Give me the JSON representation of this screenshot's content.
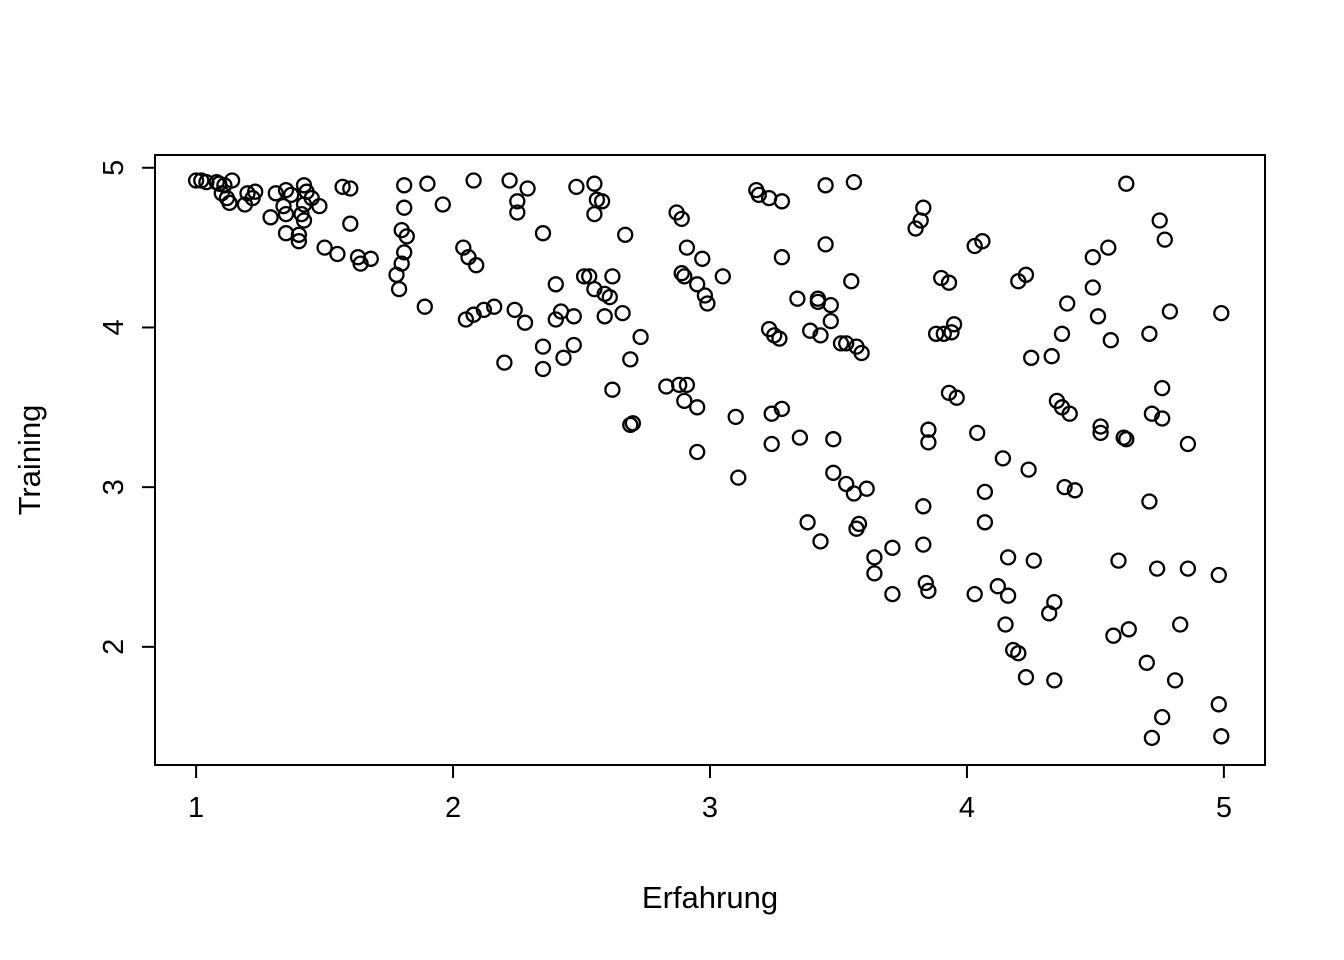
{
  "chart_data": {
    "type": "scatter",
    "title": "",
    "xlabel": "Erfahrung",
    "ylabel": "Training",
    "x_ticks": [
      1,
      2,
      3,
      4,
      5
    ],
    "y_ticks": [
      2,
      3,
      4,
      5
    ],
    "xlim": [
      0.84,
      5.16
    ],
    "ylim": [
      1.26,
      5.08
    ],
    "grid": false,
    "legend": null,
    "marker": "open-circle",
    "marker_color": "#000000",
    "background": "#ffffff",
    "points": [
      [
        1.0,
        4.92
      ],
      [
        1.02,
        4.92
      ],
      [
        1.04,
        4.91
      ],
      [
        1.08,
        4.91
      ],
      [
        1.09,
        4.9
      ],
      [
        1.11,
        4.89
      ],
      [
        1.14,
        4.92
      ],
      [
        1.1,
        4.84
      ],
      [
        1.12,
        4.81
      ],
      [
        1.13,
        4.78
      ],
      [
        1.19,
        4.77
      ],
      [
        1.2,
        4.84
      ],
      [
        1.22,
        4.81
      ],
      [
        1.23,
        4.85
      ],
      [
        1.29,
        4.69
      ],
      [
        1.31,
        4.84
      ],
      [
        1.34,
        4.76
      ],
      [
        1.35,
        4.86
      ],
      [
        1.35,
        4.71
      ],
      [
        1.35,
        4.59
      ],
      [
        1.37,
        4.83
      ],
      [
        1.4,
        4.58
      ],
      [
        1.4,
        4.54
      ],
      [
        1.41,
        4.71
      ],
      [
        1.42,
        4.89
      ],
      [
        1.42,
        4.77
      ],
      [
        1.42,
        4.67
      ],
      [
        1.43,
        4.85
      ],
      [
        1.45,
        4.81
      ],
      [
        1.48,
        4.76
      ],
      [
        1.5,
        4.5
      ],
      [
        1.55,
        4.46
      ],
      [
        1.57,
        4.88
      ],
      [
        1.6,
        4.87
      ],
      [
        1.6,
        4.65
      ],
      [
        1.63,
        4.44
      ],
      [
        1.64,
        4.4
      ],
      [
        1.68,
        4.43
      ],
      [
        1.78,
        4.33
      ],
      [
        1.79,
        4.24
      ],
      [
        1.8,
        4.61
      ],
      [
        1.8,
        4.4
      ],
      [
        1.81,
        4.89
      ],
      [
        1.81,
        4.75
      ],
      [
        1.81,
        4.47
      ],
      [
        1.82,
        4.57
      ],
      [
        1.89,
        4.13
      ],
      [
        1.9,
        4.9
      ],
      [
        1.96,
        4.77
      ],
      [
        2.04,
        4.5
      ],
      [
        2.05,
        4.05
      ],
      [
        2.06,
        4.44
      ],
      [
        2.08,
        4.92
      ],
      [
        2.08,
        4.08
      ],
      [
        2.09,
        4.39
      ],
      [
        2.12,
        4.11
      ],
      [
        2.16,
        4.13
      ],
      [
        2.2,
        3.78
      ],
      [
        2.22,
        4.92
      ],
      [
        2.24,
        4.11
      ],
      [
        2.25,
        4.79
      ],
      [
        2.25,
        4.72
      ],
      [
        2.28,
        4.03
      ],
      [
        2.29,
        4.87
      ],
      [
        2.35,
        4.59
      ],
      [
        2.35,
        3.88
      ],
      [
        2.35,
        3.74
      ],
      [
        2.4,
        4.27
      ],
      [
        2.4,
        4.05
      ],
      [
        2.42,
        4.1
      ],
      [
        2.43,
        3.81
      ],
      [
        2.47,
        4.07
      ],
      [
        2.47,
        3.89
      ],
      [
        2.48,
        4.88
      ],
      [
        2.51,
        4.32
      ],
      [
        2.53,
        4.32
      ],
      [
        2.55,
        4.9
      ],
      [
        2.55,
        4.71
      ],
      [
        2.55,
        4.24
      ],
      [
        2.56,
        4.8
      ],
      [
        2.58,
        4.79
      ],
      [
        2.59,
        4.21
      ],
      [
        2.59,
        4.07
      ],
      [
        2.61,
        4.19
      ],
      [
        2.62,
        4.32
      ],
      [
        2.62,
        3.61
      ],
      [
        2.66,
        4.09
      ],
      [
        2.67,
        4.58
      ],
      [
        2.69,
        3.8
      ],
      [
        2.69,
        3.39
      ],
      [
        2.7,
        3.4
      ],
      [
        2.73,
        3.94
      ],
      [
        2.83,
        3.63
      ],
      [
        2.87,
        4.72
      ],
      [
        2.88,
        3.64
      ],
      [
        2.89,
        4.68
      ],
      [
        2.89,
        4.34
      ],
      [
        2.9,
        4.32
      ],
      [
        2.9,
        3.54
      ],
      [
        2.91,
        4.5
      ],
      [
        2.91,
        3.64
      ],
      [
        2.95,
        4.27
      ],
      [
        2.95,
        3.5
      ],
      [
        2.95,
        3.22
      ],
      [
        2.97,
        4.43
      ],
      [
        2.98,
        4.2
      ],
      [
        2.99,
        4.15
      ],
      [
        3.05,
        4.32
      ],
      [
        3.1,
        3.44
      ],
      [
        3.11,
        3.06
      ],
      [
        3.18,
        4.86
      ],
      [
        3.19,
        4.83
      ],
      [
        3.23,
        4.81
      ],
      [
        3.23,
        3.99
      ],
      [
        3.24,
        3.46
      ],
      [
        3.24,
        3.27
      ],
      [
        3.25,
        3.95
      ],
      [
        3.27,
        3.93
      ],
      [
        3.28,
        4.79
      ],
      [
        3.28,
        4.44
      ],
      [
        3.28,
        3.49
      ],
      [
        3.34,
        4.18
      ],
      [
        3.35,
        3.31
      ],
      [
        3.38,
        2.78
      ],
      [
        3.39,
        3.98
      ],
      [
        3.42,
        4.18
      ],
      [
        3.42,
        4.16
      ],
      [
        3.43,
        3.95
      ],
      [
        3.43,
        2.66
      ],
      [
        3.45,
        4.89
      ],
      [
        3.45,
        4.52
      ],
      [
        3.47,
        4.14
      ],
      [
        3.47,
        4.04
      ],
      [
        3.48,
        3.3
      ],
      [
        3.48,
        3.09
      ],
      [
        3.51,
        3.9
      ],
      [
        3.53,
        3.9
      ],
      [
        3.53,
        3.02
      ],
      [
        3.55,
        4.29
      ],
      [
        3.56,
        4.91
      ],
      [
        3.56,
        2.96
      ],
      [
        3.57,
        3.88
      ],
      [
        3.57,
        2.74
      ],
      [
        3.58,
        2.77
      ],
      [
        3.59,
        3.84
      ],
      [
        3.61,
        2.99
      ],
      [
        3.64,
        2.56
      ],
      [
        3.64,
        2.46
      ],
      [
        3.71,
        2.62
      ],
      [
        3.71,
        2.33
      ],
      [
        3.8,
        4.62
      ],
      [
        3.82,
        4.67
      ],
      [
        3.83,
        4.75
      ],
      [
        3.83,
        2.88
      ],
      [
        3.83,
        2.64
      ],
      [
        3.84,
        2.4
      ],
      [
        3.85,
        3.36
      ],
      [
        3.85,
        3.28
      ],
      [
        3.85,
        2.35
      ],
      [
        3.88,
        3.96
      ],
      [
        3.9,
        4.31
      ],
      [
        3.91,
        3.96
      ],
      [
        3.93,
        4.28
      ],
      [
        3.93,
        3.59
      ],
      [
        3.94,
        3.97
      ],
      [
        3.95,
        4.02
      ],
      [
        3.96,
        3.56
      ],
      [
        4.03,
        4.51
      ],
      [
        4.03,
        2.33
      ],
      [
        4.04,
        3.34
      ],
      [
        4.06,
        4.54
      ],
      [
        4.07,
        2.97
      ],
      [
        4.07,
        2.78
      ],
      [
        4.12,
        2.38
      ],
      [
        4.14,
        3.18
      ],
      [
        4.15,
        2.14
      ],
      [
        4.16,
        2.56
      ],
      [
        4.16,
        2.32
      ],
      [
        4.18,
        1.98
      ],
      [
        4.2,
        4.29
      ],
      [
        4.2,
        1.96
      ],
      [
        4.23,
        4.33
      ],
      [
        4.23,
        1.81
      ],
      [
        4.24,
        3.11
      ],
      [
        4.25,
        3.81
      ],
      [
        4.26,
        2.54
      ],
      [
        4.32,
        2.21
      ],
      [
        4.33,
        3.82
      ],
      [
        4.34,
        2.28
      ],
      [
        4.34,
        1.79
      ],
      [
        4.35,
        3.54
      ],
      [
        4.37,
        3.96
      ],
      [
        4.37,
        3.5
      ],
      [
        4.38,
        3.0
      ],
      [
        4.39,
        4.15
      ],
      [
        4.4,
        3.46
      ],
      [
        4.42,
        2.98
      ],
      [
        4.49,
        4.44
      ],
      [
        4.49,
        4.25
      ],
      [
        4.51,
        4.07
      ],
      [
        4.52,
        3.38
      ],
      [
        4.52,
        3.34
      ],
      [
        4.55,
        4.5
      ],
      [
        4.56,
        3.92
      ],
      [
        4.57,
        2.07
      ],
      [
        4.59,
        2.54
      ],
      [
        4.61,
        3.31
      ],
      [
        4.62,
        4.9
      ],
      [
        4.62,
        3.3
      ],
      [
        4.63,
        2.11
      ],
      [
        4.7,
        1.9
      ],
      [
        4.71,
        3.96
      ],
      [
        4.71,
        2.91
      ],
      [
        4.72,
        3.46
      ],
      [
        4.72,
        1.43
      ],
      [
        4.74,
        2.49
      ],
      [
        4.75,
        4.67
      ],
      [
        4.76,
        3.62
      ],
      [
        4.76,
        3.43
      ],
      [
        4.76,
        1.56
      ],
      [
        4.77,
        4.55
      ],
      [
        4.79,
        4.1
      ],
      [
        4.81,
        1.79
      ],
      [
        4.83,
        2.14
      ],
      [
        4.86,
        3.27
      ],
      [
        4.86,
        2.49
      ],
      [
        4.98,
        2.45
      ],
      [
        4.98,
        1.64
      ],
      [
        4.99,
        4.09
      ],
      [
        4.99,
        1.44
      ]
    ]
  }
}
